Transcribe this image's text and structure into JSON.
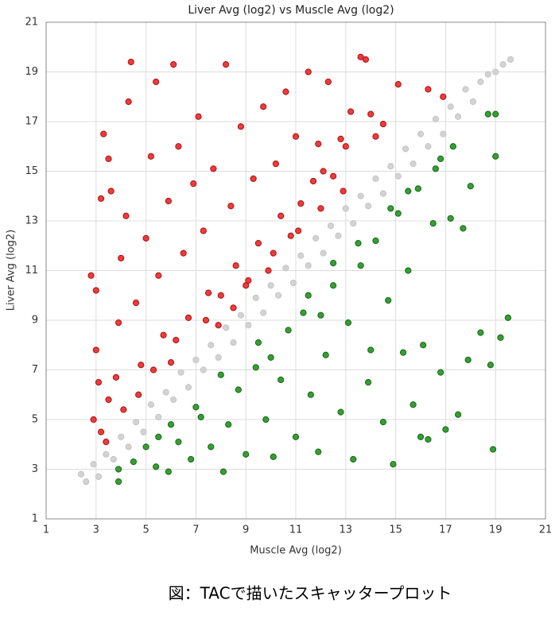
{
  "chart_data": {
    "type": "scatter",
    "title": "Liver Avg (log2) vs Muscle Avg (log2)",
    "x_label": "Muscle Avg (log2)",
    "y_label": "Liver Avg (log2)",
    "xlim": [
      1,
      21
    ],
    "ylim": [
      1,
      21
    ],
    "xticks": [
      1,
      3,
      5,
      7,
      9,
      11,
      13,
      15,
      17,
      19,
      21
    ],
    "yticks": [
      1,
      3,
      5,
      7,
      9,
      11,
      13,
      15,
      17,
      19,
      21
    ],
    "grid": true,
    "series": [
      {
        "color": "#ee3b3b",
        "edge": "#a81010",
        "x": [
          2.8,
          3.0,
          3.2,
          3.3,
          3.5,
          3.6,
          3.0,
          3.1,
          2.9,
          3.2,
          3.5,
          3.8,
          3.9,
          4.0,
          4.2,
          4.4,
          4.3,
          4.6,
          4.8,
          5.0,
          5.2,
          5.4,
          5.5,
          5.7,
          5.9,
          6.1,
          6.3,
          6.5,
          6.7,
          6.9,
          7.1,
          7.3,
          7.5,
          7.7,
          7.9,
          8.2,
          8.4,
          8.6,
          8.8,
          9.0,
          9.3,
          9.5,
          9.7,
          9.9,
          10.2,
          10.4,
          10.6,
          10.8,
          11.0,
          11.2,
          11.5,
          11.7,
          11.9,
          12.1,
          12.3,
          12.5,
          12.8,
          13.0,
          13.2,
          13.6,
          13.8,
          14.0,
          14.2,
          14.5,
          5.3,
          6.2,
          7.4,
          8.0,
          4.1,
          3.4,
          4.7,
          6.0,
          9.1,
          10.1,
          11.1,
          12.0,
          8.5,
          12.9,
          16.3,
          15.1,
          16.9
        ],
        "values": [
          10.8,
          10.2,
          13.9,
          16.5,
          15.5,
          14.2,
          7.8,
          6.5,
          5.0,
          4.5,
          5.8,
          6.7,
          8.9,
          11.5,
          13.2,
          19.4,
          17.8,
          9.7,
          7.2,
          12.3,
          15.6,
          18.6,
          10.8,
          8.4,
          13.8,
          19.3,
          16.0,
          11.7,
          9.1,
          14.5,
          17.2,
          12.6,
          10.1,
          15.1,
          8.8,
          19.3,
          13.6,
          11.2,
          16.8,
          10.4,
          14.7,
          12.1,
          17.6,
          11.0,
          15.3,
          13.2,
          18.2,
          12.4,
          16.4,
          13.7,
          19.0,
          14.6,
          16.1,
          15.0,
          18.6,
          14.8,
          16.3,
          16.0,
          17.4,
          19.6,
          19.5,
          17.3,
          16.4,
          16.9,
          7.0,
          8.2,
          9.0,
          10.0,
          5.4,
          4.1,
          6.0,
          7.3,
          10.6,
          11.7,
          12.6,
          13.5,
          9.5,
          14.2,
          18.3,
          18.5,
          18.0
        ]
      },
      {
        "color": "#35a030",
        "edge": "#17641a",
        "x": [
          3.9,
          3.9,
          4.5,
          5.0,
          5.4,
          5.9,
          6.3,
          6.8,
          7.2,
          7.6,
          8.1,
          8.3,
          8.7,
          9.0,
          9.4,
          9.8,
          10.1,
          10.4,
          10.7,
          11.0,
          11.3,
          11.6,
          11.9,
          12.2,
          12.5,
          12.8,
          13.1,
          13.3,
          13.6,
          13.9,
          14.2,
          14.5,
          14.7,
          14.9,
          15.1,
          15.3,
          15.5,
          15.7,
          15.9,
          16.1,
          16.3,
          16.5,
          16.6,
          16.8,
          17.0,
          17.2,
          17.5,
          17.7,
          17.9,
          18.0,
          18.4,
          18.7,
          18.9,
          19.0,
          19.2,
          19.5,
          19.0,
          18.8,
          16.0,
          14.0,
          12.0,
          10.0,
          7.0,
          5.5,
          8.0,
          11.5,
          13.5,
          15.5,
          17.3,
          6.0,
          9.5,
          12.5,
          14.8,
          16.8
        ],
        "values": [
          2.5,
          3.0,
          3.3,
          3.9,
          3.1,
          2.9,
          4.1,
          3.4,
          5.1,
          3.9,
          2.9,
          4.8,
          6.2,
          3.6,
          7.1,
          5.0,
          3.5,
          6.6,
          8.6,
          4.3,
          9.3,
          6.0,
          3.7,
          7.6,
          10.4,
          5.3,
          8.9,
          3.4,
          11.2,
          6.5,
          12.2,
          4.9,
          9.8,
          3.2,
          13.3,
          7.7,
          11.0,
          5.6,
          14.3,
          8.0,
          4.2,
          12.9,
          15.1,
          6.9,
          4.6,
          13.1,
          5.2,
          12.7,
          7.4,
          14.4,
          8.5,
          17.3,
          3.8,
          15.6,
          8.3,
          9.1,
          17.3,
          7.2,
          4.3,
          7.8,
          9.2,
          7.5,
          5.5,
          4.3,
          6.8,
          10.0,
          12.1,
          14.2,
          16.0,
          4.8,
          8.1,
          11.3,
          13.5,
          15.5
        ]
      },
      {
        "color": "#d3d3d3",
        "edge": "#c4c4c4",
        "x": [
          2.4,
          2.6,
          2.9,
          3.1,
          3.4,
          3.7,
          4.0,
          4.3,
          4.6,
          4.9,
          5.2,
          5.5,
          5.8,
          6.1,
          6.4,
          6.7,
          7.0,
          7.3,
          7.6,
          7.9,
          8.2,
          8.5,
          8.8,
          9.1,
          9.4,
          9.7,
          10.0,
          10.3,
          10.6,
          10.9,
          11.2,
          11.5,
          11.8,
          12.1,
          12.4,
          12.7,
          13.0,
          13.3,
          13.6,
          13.9,
          14.2,
          14.5,
          14.8,
          15.1,
          15.4,
          15.7,
          16.0,
          16.3,
          16.6,
          16.9,
          17.2,
          17.5,
          17.8,
          18.1,
          18.4,
          18.7,
          19.0,
          19.3,
          19.6
        ],
        "values": [
          2.8,
          2.5,
          3.2,
          2.7,
          3.6,
          3.4,
          4.3,
          3.9,
          4.9,
          4.5,
          5.6,
          5.1,
          6.1,
          5.8,
          6.9,
          6.3,
          7.4,
          7.0,
          8.0,
          7.5,
          8.7,
          8.1,
          9.2,
          8.8,
          9.9,
          9.3,
          10.4,
          10.0,
          11.1,
          10.5,
          11.6,
          11.2,
          12.3,
          11.7,
          12.8,
          12.4,
          13.5,
          12.9,
          14.0,
          13.6,
          14.7,
          14.1,
          15.2,
          14.8,
          15.9,
          15.3,
          16.5,
          16.0,
          17.1,
          16.5,
          17.6,
          17.2,
          18.3,
          17.8,
          18.6,
          18.9,
          19.0,
          19.3,
          19.5
        ]
      }
    ]
  },
  "caption": "図：TACで描いたスキャッタープロット"
}
